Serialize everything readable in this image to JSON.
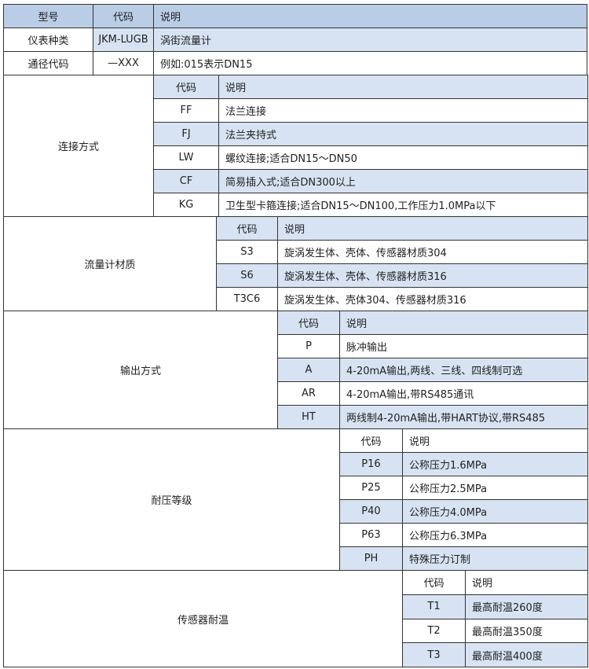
{
  "colors": {
    "header": "#b9cde6",
    "shaded": "#d7e3f2"
  },
  "header": {
    "model": "型号",
    "code": "代码",
    "desc": "说明"
  },
  "top_rows": [
    {
      "label": "仪表种类",
      "code": "JKM-LUGB",
      "desc": "涡街流量计"
    },
    {
      "label": "通径代码",
      "code": "—XXX",
      "desc": "例如:015表示DN15"
    }
  ],
  "sections": [
    {
      "label": "连接方式",
      "code_header": "代码",
      "desc_header": "说明",
      "header_shaded": true,
      "rows": [
        {
          "code": "FF",
          "desc": "法兰连接",
          "shaded": false
        },
        {
          "code": "FJ",
          "desc": "法兰夹持式",
          "shaded": true
        },
        {
          "code": "LW",
          "desc": "螺纹连接;适合DN15～DN50",
          "shaded": false
        },
        {
          "code": "CF",
          "desc": "简易插入式;适合DN300以上",
          "shaded": true
        },
        {
          "code": "KG",
          "desc": "卫生型卡箍连接;适合DN15～DN100,工作压力1.0MPa以下",
          "shaded": false
        }
      ]
    },
    {
      "label": "流量计材质",
      "code_header": "代码",
      "desc_header": "说明",
      "header_shaded": true,
      "rows": [
        {
          "code": "S3",
          "desc": "旋涡发生体、壳体、传感器材质304",
          "shaded": false
        },
        {
          "code": "S6",
          "desc": "旋涡发生体、壳体、传感器材质316",
          "shaded": true
        },
        {
          "code": "T3C6",
          "desc": "旋涡发生体、壳体304、传感器材质316",
          "shaded": false
        }
      ]
    },
    {
      "label": "输出方式",
      "code_header": "代码",
      "desc_header": "说明",
      "header_shaded": true,
      "rows": [
        {
          "code": "P",
          "desc": "脉冲输出",
          "shaded": false
        },
        {
          "code": "A",
          "desc": "4-20mA输出,两线、三线、四线制可选",
          "shaded": true
        },
        {
          "code": "AR",
          "desc": "4-20mA输出,带RS485通讯",
          "shaded": false
        },
        {
          "code": "HT",
          "desc": "两线制4-20mA输出,带HART协议,带RS485",
          "shaded": true
        }
      ]
    },
    {
      "label": "耐压等级",
      "code_header": "代码",
      "desc_header": "说明",
      "header_shaded": false,
      "rows": [
        {
          "code": "P16",
          "desc": "公称压力1.6MPa",
          "shaded": true
        },
        {
          "code": "P25",
          "desc": "公称压力2.5MPa",
          "shaded": false
        },
        {
          "code": "P40",
          "desc": "公称压力4.0MPa",
          "shaded": true
        },
        {
          "code": "P63",
          "desc": "公称压力6.3MPa",
          "shaded": false
        },
        {
          "code": "PH",
          "desc": "特殊压力订制",
          "shaded": true
        }
      ]
    },
    {
      "label": "传感器耐温",
      "code_header": "代码",
      "desc_header": "说明",
      "header_shaded": false,
      "rows": [
        {
          "code": "T1",
          "desc": "最高耐温260度",
          "shaded": true
        },
        {
          "code": "T2",
          "desc": "最高耐温350度",
          "shaded": false
        },
        {
          "code": "T3",
          "desc": "最高耐温400度",
          "shaded": true
        }
      ]
    }
  ]
}
